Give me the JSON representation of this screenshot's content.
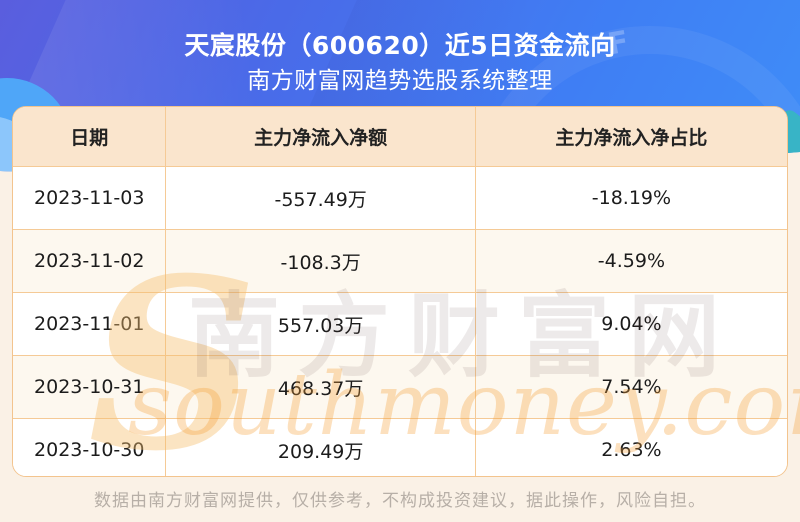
{
  "hero": {
    "title": "天宸股份（600620）近5日资金流向",
    "subtitle": "南方财富网趋势选股系统整理",
    "gauge_letter": "F",
    "gradient": [
      "#5a5ede",
      "#4a6ae8",
      "#3f8ef8"
    ]
  },
  "table": {
    "columns": [
      "日期",
      "主力净流入净额",
      "主力净流入净占比"
    ],
    "rows": [
      {
        "date": "2023-11-03",
        "amount": "-557.49万",
        "ratio": "-18.19%"
      },
      {
        "date": "2023-11-02",
        "amount": "-108.3万",
        "ratio": "-4.59%"
      },
      {
        "date": "2023-11-01",
        "amount": "557.03万",
        "ratio": "9.04%"
      },
      {
        "date": "2023-10-31",
        "amount": "468.37万",
        "ratio": "7.54%"
      },
      {
        "date": "2023-10-30",
        "amount": "209.49万",
        "ratio": "2.63%"
      }
    ],
    "header_bg": "#fae5cd",
    "alt_row_bg": "#fdf8ef",
    "border_color": "#f5ca96"
  },
  "watermark": {
    "initial": "S",
    "brand_cn": "南方财富网",
    "brand_en": "southmoney.com"
  },
  "footer": {
    "disclaimer": "数据由南方财富网提供，仅供参考，不构成投资建议，据此操作，风险自担。"
  },
  "chart_data": {
    "type": "table",
    "title": "天宸股份（600620）近5日资金流向",
    "subtitle": "南方财富网趋势选股系统整理",
    "columns": [
      "日期",
      "主力净流入净额",
      "主力净流入净占比"
    ],
    "rows": [
      [
        "2023-11-03",
        "-557.49万",
        "-18.19%"
      ],
      [
        "2023-11-02",
        "-108.3万",
        "-4.59%"
      ],
      [
        "2023-11-01",
        "557.03万",
        "9.04%"
      ],
      [
        "2023-10-31",
        "468.37万",
        "7.54%"
      ],
      [
        "2023-10-30",
        "209.49万",
        "2.63%"
      ]
    ],
    "series": [
      {
        "name": "主力净流入净额(万)",
        "values": [
          -557.49,
          -108.3,
          557.03,
          468.37,
          209.49
        ]
      },
      {
        "name": "主力净流入净占比(%)",
        "values": [
          -18.19,
          -4.59,
          9.04,
          7.54,
          2.63
        ]
      }
    ],
    "categories": [
      "2023-11-03",
      "2023-11-02",
      "2023-11-01",
      "2023-10-31",
      "2023-10-30"
    ]
  }
}
